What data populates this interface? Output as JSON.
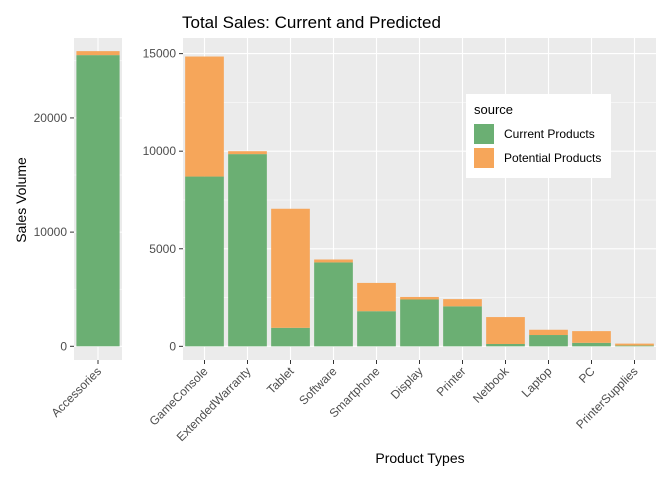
{
  "chart_data": {
    "type": "bar",
    "stacked": true,
    "title": "Total Sales: Current and Predicted",
    "xlabel": "Product Types",
    "ylabel": "Sales Volume",
    "legend": {
      "title": "source",
      "placement": "right",
      "entries": [
        "Current Products",
        "Potential Products"
      ]
    },
    "colors": {
      "current": "#6baf73",
      "potential": "#f6a65a",
      "panel": "#ebebeb",
      "grid": "#ffffff"
    },
    "panels": [
      {
        "categories": [
          "Accessories"
        ],
        "series": [
          {
            "name": "Current Products",
            "values": [
              25500
            ]
          },
          {
            "name": "Potential Products",
            "values": [
              350
            ]
          }
        ],
        "ylim": [
          -1200,
          27000
        ],
        "yticks": [
          0,
          10000,
          20000
        ],
        "ytick_labels": [
          "0",
          "10000",
          "20000"
        ]
      },
      {
        "categories": [
          "GameConsole",
          "ExtendedWarranty",
          "Tablet",
          "Software",
          "Smartphone",
          "Display",
          "Printer",
          "Netbook",
          "Laptop",
          "PC",
          "PrinterSupplies"
        ],
        "series": [
          {
            "name": "Current Products",
            "values": [
              8700,
              9850,
              950,
              4300,
              1800,
              2400,
              2050,
              120,
              580,
              180,
              40
            ]
          },
          {
            "name": "Potential Products",
            "values": [
              6150,
              150,
              6100,
              150,
              1450,
              130,
              370,
              1380,
              270,
              600,
              100
            ]
          }
        ],
        "ylim": [
          -700,
          15800
        ],
        "yticks": [
          0,
          5000,
          10000,
          15000
        ],
        "ytick_labels": [
          "0",
          "5000",
          "10000",
          "15000"
        ]
      }
    ]
  }
}
